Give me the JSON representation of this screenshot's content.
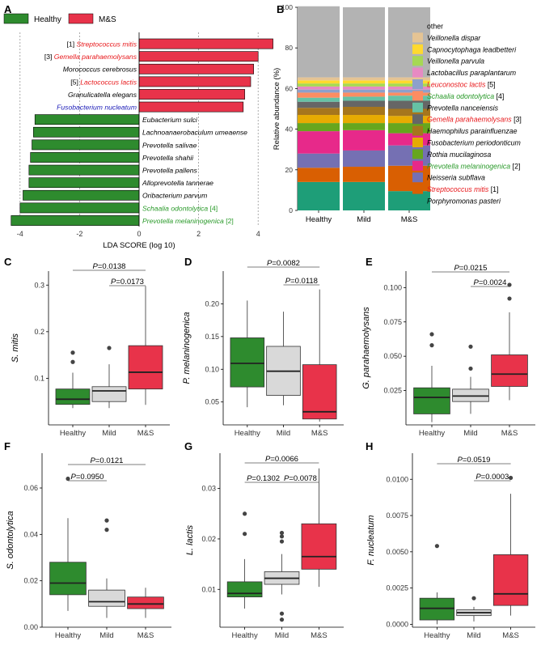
{
  "colors": {
    "healthy": "#2E8B2E",
    "ms": "#E8334A",
    "mild": "#D9D9D9",
    "red_text": "#E8191C",
    "green_text": "#2A9A2A",
    "blue_text": "#1C1CB8"
  },
  "chart_data": [
    {
      "panel": "A",
      "type": "bar",
      "orientation": "horizontal",
      "legend": [
        {
          "name": "Healthy",
          "color": "#2E8B2E"
        },
        {
          "name": "M&S",
          "color": "#E8334A"
        }
      ],
      "xlabel": "LDA SCORE (log 10)",
      "xlim": [
        -4.3,
        4.6
      ],
      "xticks": [
        -4,
        -2,
        0,
        2,
        4
      ],
      "bars": [
        {
          "label": "Streptococcus mitis",
          "prefix": "[1] ",
          "value": 4.5,
          "group": "M&S",
          "text_color": "red"
        },
        {
          "label": "Gemella parahaemolysans",
          "prefix": "[3] ",
          "value": 4.0,
          "group": "M&S",
          "text_color": "red"
        },
        {
          "label": "Morococcus cerebrosus",
          "prefix": "",
          "value": 3.85,
          "group": "M&S",
          "text_color": "black"
        },
        {
          "label": "Lactococcus lactis",
          "prefix": "[5] ",
          "value": 3.75,
          "group": "M&S",
          "text_color": "red"
        },
        {
          "label": "Granulicatella elegans",
          "prefix": "",
          "value": 3.55,
          "group": "M&S",
          "text_color": "black"
        },
        {
          "label": "Fusobacterium nucleatum",
          "prefix": "",
          "value": 3.5,
          "group": "M&S",
          "text_color": "blue"
        },
        {
          "label": "Eubacterium sulci",
          "suffix": "",
          "value": -3.5,
          "group": "Healthy",
          "text_color": "black"
        },
        {
          "label": "Lachnoanaerobaculum umeaense",
          "suffix": "",
          "value": -3.55,
          "group": "Healthy",
          "text_color": "black"
        },
        {
          "label": "Prevotella salivae",
          "suffix": "",
          "value": -3.6,
          "group": "Healthy",
          "text_color": "black"
        },
        {
          "label": "Prevotella shahii",
          "suffix": "",
          "value": -3.65,
          "group": "Healthy",
          "text_color": "black"
        },
        {
          "label": "Prevotella pallens",
          "suffix": "",
          "value": -3.7,
          "group": "Healthy",
          "text_color": "black"
        },
        {
          "label": "Alloprevotella tannerae",
          "suffix": "",
          "value": -3.7,
          "group": "Healthy",
          "text_color": "black"
        },
        {
          "label": "Oribacterium parvum",
          "suffix": "",
          "value": -3.9,
          "group": "Healthy",
          "text_color": "black"
        },
        {
          "label": "Schaalia odontolytica",
          "suffix": " [4]",
          "value": -4.0,
          "group": "Healthy",
          "text_color": "green"
        },
        {
          "label": "Prevotella melaninogenica",
          "suffix": " [2]",
          "value": -4.3,
          "group": "Healthy",
          "text_color": "green"
        }
      ]
    },
    {
      "panel": "B",
      "type": "bar",
      "stacked": true,
      "ylabel": "Relative abundance (%)",
      "ylim": [
        0,
        100
      ],
      "yticks": [
        0,
        20,
        40,
        60,
        80,
        100
      ],
      "categories": [
        "Healthy",
        "Mild",
        "M&S"
      ],
      "series": [
        {
          "name": "Porphyromonas pasteri",
          "color": "#1E9E78",
          "values": [
            14,
            14,
            9.5
          ]
        },
        {
          "name": "Streptococcus mitis",
          "tag": " [1]",
          "text_color": "red",
          "color": "#D95F02",
          "values": [
            7,
            7.5,
            12.5
          ]
        },
        {
          "name": "Neisseria subflava",
          "color": "#7570B3",
          "values": [
            7,
            8,
            10
          ]
        },
        {
          "name": "Prevotella melaninogenica",
          "tag": " [2]",
          "text_color": "green",
          "color": "#E7298A",
          "values": [
            11,
            10,
            6
          ]
        },
        {
          "name": "Rothia mucilaginosa",
          "color": "#66A61E",
          "values": [
            4,
            3.5,
            5
          ]
        },
        {
          "name": "Fusobacterium periodonticum",
          "color": "#E6AB02",
          "values": [
            4,
            4,
            3.5
          ]
        },
        {
          "name": "Haemophilus parainfluenzae",
          "color": "#A6761D",
          "values": [
            3.5,
            4,
            3.5
          ]
        },
        {
          "name": "Gemella parahaemolysans",
          "tag": " [3]",
          "text_color": "red",
          "color": "#666666",
          "values": [
            3,
            3,
            4
          ]
        },
        {
          "name": "Prevotella nanceiensis",
          "color": "#66C2A5",
          "values": [
            2,
            2,
            2.5
          ]
        },
        {
          "name": "Schaalia odontolytica",
          "tag": " [4]",
          "text_color": "green",
          "color": "#FC8D62",
          "values": [
            2.5,
            2,
            1.5
          ]
        },
        {
          "name": "Leuconostoc lactis",
          "tag": " [5]",
          "text_color": "red",
          "color": "#8DA0CB",
          "values": [
            1.5,
            1.5,
            1.5
          ]
        },
        {
          "name": "Lactobacillus paraplantarum",
          "color": "#E78AC3",
          "values": [
            1.5,
            1.5,
            1.5
          ]
        },
        {
          "name": "Veillonella parvula",
          "color": "#A6D854",
          "values": [
            1.5,
            1.5,
            1.5
          ]
        },
        {
          "name": "Capnocytophaga leadbetteri",
          "color": "#FFD92F",
          "values": [
            1.5,
            1.5,
            1.5
          ]
        },
        {
          "name": "Veillonella dispar",
          "color": "#E5C494",
          "values": [
            1.5,
            1.5,
            1.5
          ]
        },
        {
          "name": "other",
          "color": "#B3B3B3",
          "values": [
            35,
            34.5,
            34.5
          ]
        }
      ]
    },
    {
      "panel": "C",
      "type": "box",
      "ylabel": "S. mitis",
      "ylim": [
        0.0,
        0.33
      ],
      "yticks": [
        0.1,
        0.2,
        0.3
      ],
      "ytick_labels": [
        "0.1",
        "0.2",
        "0.3"
      ],
      "categories": [
        "Healthy",
        "Mild",
        "M&S"
      ],
      "boxes": [
        {
          "q1": 0.044,
          "median": 0.055,
          "q3": 0.077,
          "lo": 0.036,
          "hi": 0.112,
          "outliers": [
            0.155,
            0.135
          ]
        },
        {
          "q1": 0.05,
          "median": 0.073,
          "q3": 0.082,
          "lo": 0.036,
          "hi": 0.13,
          "outliers": [
            0.165
          ]
        },
        {
          "q1": 0.077,
          "median": 0.113,
          "q3": 0.17,
          "lo": 0.043,
          "hi": 0.298,
          "outliers": []
        }
      ],
      "pvalues": [
        {
          "from": 0,
          "to": 2,
          "label": "0.0138"
        },
        {
          "from": 1,
          "to": 2,
          "label": "0.0173"
        }
      ]
    },
    {
      "panel": "D",
      "type": "box",
      "ylabel": "P. melaninogenica",
      "ylim": [
        0.015,
        0.25
      ],
      "yticks": [
        0.05,
        0.1,
        0.15,
        0.2
      ],
      "ytick_labels": [
        "0.05",
        "0.10",
        "0.15",
        "0.20"
      ],
      "categories": [
        "Healthy",
        "Mild",
        "M&S"
      ],
      "boxes": [
        {
          "q1": 0.073,
          "median": 0.109,
          "q3": 0.148,
          "lo": 0.042,
          "hi": 0.205,
          "outliers": []
        },
        {
          "q1": 0.06,
          "median": 0.097,
          "q3": 0.135,
          "lo": 0.045,
          "hi": 0.188,
          "outliers": []
        },
        {
          "q1": 0.024,
          "median": 0.035,
          "q3": 0.107,
          "lo": 0.02,
          "hi": 0.222,
          "outliers": []
        }
      ],
      "pvalues": [
        {
          "from": 0,
          "to": 2,
          "label": "0.0082"
        },
        {
          "from": 1,
          "to": 2,
          "label": "0.0118"
        }
      ]
    },
    {
      "panel": "E",
      "type": "box",
      "ylabel": "G. parahaemolysans",
      "ylim": [
        0.0,
        0.112
      ],
      "yticks": [
        0.025,
        0.05,
        0.075,
        0.1
      ],
      "ytick_labels": [
        "0.025",
        "0.050",
        "0.075",
        "0.100"
      ],
      "categories": [
        "Healthy",
        "Mild",
        "M&S"
      ],
      "boxes": [
        {
          "q1": 0.008,
          "median": 0.02,
          "q3": 0.027,
          "lo": 0.002,
          "hi": 0.043,
          "outliers": [
            0.066,
            0.058
          ]
        },
        {
          "q1": 0.017,
          "median": 0.021,
          "q3": 0.026,
          "lo": 0.008,
          "hi": 0.035,
          "outliers": [
            0.057,
            0.041
          ]
        },
        {
          "q1": 0.028,
          "median": 0.037,
          "q3": 0.051,
          "lo": 0.018,
          "hi": 0.082,
          "outliers": [
            0.102,
            0.092
          ]
        }
      ],
      "pvalues": [
        {
          "from": 0,
          "to": 2,
          "label": "0.0215"
        },
        {
          "from": 1,
          "to": 2,
          "label": "0.0024"
        }
      ]
    },
    {
      "panel": "F",
      "type": "box",
      "ylabel": "S. odontolytica",
      "ylim": [
        0.0,
        0.075
      ],
      "yticks": [
        0.0,
        0.02,
        0.04,
        0.06
      ],
      "ytick_labels": [
        "0.00",
        "0.02",
        "0.04",
        "0.06"
      ],
      "categories": [
        "Healthy",
        "Mild",
        "M&S"
      ],
      "boxes": [
        {
          "q1": 0.014,
          "median": 0.019,
          "q3": 0.028,
          "lo": 0.007,
          "hi": 0.047,
          "outliers": [
            0.064
          ]
        },
        {
          "q1": 0.009,
          "median": 0.011,
          "q3": 0.016,
          "lo": 0.004,
          "hi": 0.021,
          "outliers": [
            0.046,
            0.042
          ]
        },
        {
          "q1": 0.008,
          "median": 0.01,
          "q3": 0.013,
          "lo": 0.004,
          "hi": 0.017,
          "outliers": []
        }
      ],
      "pvalues": [
        {
          "from": 0,
          "to": 2,
          "label": "0.0121"
        },
        {
          "from": 0,
          "to": 1,
          "label": "0.0950"
        }
      ]
    },
    {
      "panel": "G",
      "type": "box",
      "ylabel": "L. lactis",
      "ylim": [
        0.0025,
        0.037
      ],
      "yticks": [
        0.01,
        0.02,
        0.03
      ],
      "ytick_labels": [
        "0.01",
        "0.02",
        "0.03"
      ],
      "categories": [
        "Healthy",
        "Mild",
        "M&S"
      ],
      "boxes": [
        {
          "q1": 0.0085,
          "median": 0.0092,
          "q3": 0.0115,
          "lo": 0.0062,
          "hi": 0.016,
          "outliers": [
            0.025,
            0.021
          ]
        },
        {
          "q1": 0.011,
          "median": 0.0122,
          "q3": 0.0135,
          "lo": 0.009,
          "hi": 0.017,
          "outliers": [
            0.0212,
            0.0205,
            0.0195,
            0.0052,
            0.004
          ]
        },
        {
          "q1": 0.014,
          "median": 0.0165,
          "q3": 0.023,
          "lo": 0.0105,
          "hi": 0.034,
          "outliers": []
        }
      ],
      "pvalues": [
        {
          "from": 0,
          "to": 2,
          "label": "0.0066"
        },
        {
          "from": 0,
          "to": 1,
          "label": "0.1302"
        },
        {
          "from": 1,
          "to": 2,
          "label": "0.0078"
        }
      ]
    },
    {
      "panel": "H",
      "type": "box",
      "ylabel": "F. nucleatum",
      "ylim": [
        -0.0002,
        0.0118
      ],
      "yticks": [
        0.0,
        0.0025,
        0.005,
        0.0075,
        0.01
      ],
      "ytick_labels": [
        "0.0000",
        "0.0025",
        "0.0050",
        "0.0075",
        "0.0100"
      ],
      "categories": [
        "Healthy",
        "Mild",
        "M&S"
      ],
      "boxes": [
        {
          "q1": 0.0003,
          "median": 0.0011,
          "q3": 0.0018,
          "lo": 0.0,
          "hi": 0.0022,
          "outliers": [
            0.0054
          ]
        },
        {
          "q1": 0.0006,
          "median": 0.0008,
          "q3": 0.001,
          "lo": 0.0002,
          "hi": 0.0012,
          "outliers": [
            0.0018
          ]
        },
        {
          "q1": 0.0013,
          "median": 0.0021,
          "q3": 0.0048,
          "lo": 0.0006,
          "hi": 0.009,
          "outliers": [
            0.0101
          ]
        }
      ],
      "pvalues": [
        {
          "from": 0,
          "to": 2,
          "label": "0.0519"
        },
        {
          "from": 1,
          "to": 2,
          "label": "0.0003"
        }
      ]
    }
  ]
}
